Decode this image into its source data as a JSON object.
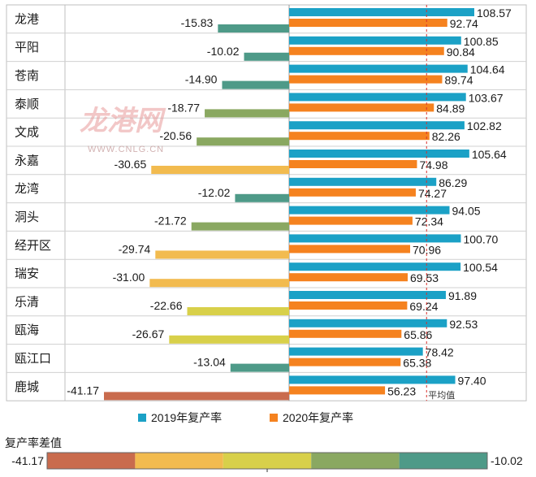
{
  "chart_data": {
    "type": "bar",
    "title": "",
    "categories": [
      "龙港",
      "平阳",
      "苍南",
      "泰顺",
      "文成",
      "永嘉",
      "龙湾",
      "洞头",
      "经开区",
      "瑞安",
      "乐清",
      "瓯海",
      "瓯江口",
      "鹿城"
    ],
    "series": [
      {
        "name": "2019年复产率",
        "color": "#1ba1c6",
        "values": [
          108.57,
          100.85,
          104.64,
          103.67,
          102.82,
          105.64,
          86.29,
          94.05,
          100.7,
          100.54,
          91.89,
          92.53,
          78.42,
          97.4
        ],
        "labels": [
          "108.57",
          "100.85",
          "104.64",
          "103.67",
          "102.82",
          "105.64",
          "86.29",
          "94.05",
          "100.70",
          "100.54",
          "91.89",
          "92.53",
          "78.42",
          "97.40"
        ]
      },
      {
        "name": "2020年复产率",
        "color": "#f5821f",
        "values": [
          92.74,
          90.84,
          89.74,
          84.89,
          82.26,
          74.98,
          74.27,
          72.34,
          70.96,
          69.53,
          69.24,
          65.86,
          65.38,
          56.23
        ],
        "labels": [
          "92.74",
          "90.84",
          "89.74",
          "84.89",
          "82.26",
          "74.98",
          "74.27",
          "72.34",
          "70.96",
          "69.53",
          "69.24",
          "65.86",
          "65.38",
          "56.23"
        ]
      }
    ],
    "difference": {
      "name": "复产率差值",
      "values": [
        -15.83,
        -10.02,
        -14.9,
        -18.77,
        -20.56,
        -30.65,
        -12.02,
        -21.72,
        -29.74,
        -31.0,
        -22.66,
        -26.67,
        -13.04,
        -41.17
      ],
      "labels": [
        "-15.83",
        "-10.02",
        "-14.90",
        "-18.77",
        "-20.56",
        "-30.65",
        "-12.02",
        "-21.72",
        "-29.74",
        "-31.00",
        "-22.66",
        "-26.67",
        "-13.04",
        "-41.17"
      ]
    },
    "average_line": {
      "label": "平均值",
      "value": 80.6
    },
    "xlim_positive": [
      0,
      110
    ],
    "xlim_negative": [
      -41.17,
      0
    ],
    "legend_position": "bottom-center"
  },
  "legend": {
    "series_2019": "2019年复产率",
    "series_2020": "2020年复产率"
  },
  "color_scale": {
    "title": "复产率差值",
    "min_label": "-41.17",
    "max_label": "-10.02",
    "min_value": -41.17,
    "max_value": -10.02,
    "colors": [
      "#c96b4d",
      "#f2bb4f",
      "#d8d04a",
      "#8aa861",
      "#4e9a88"
    ]
  },
  "watermark": {
    "text": "龙港网",
    "url": "WWW.CNLG.CN"
  }
}
